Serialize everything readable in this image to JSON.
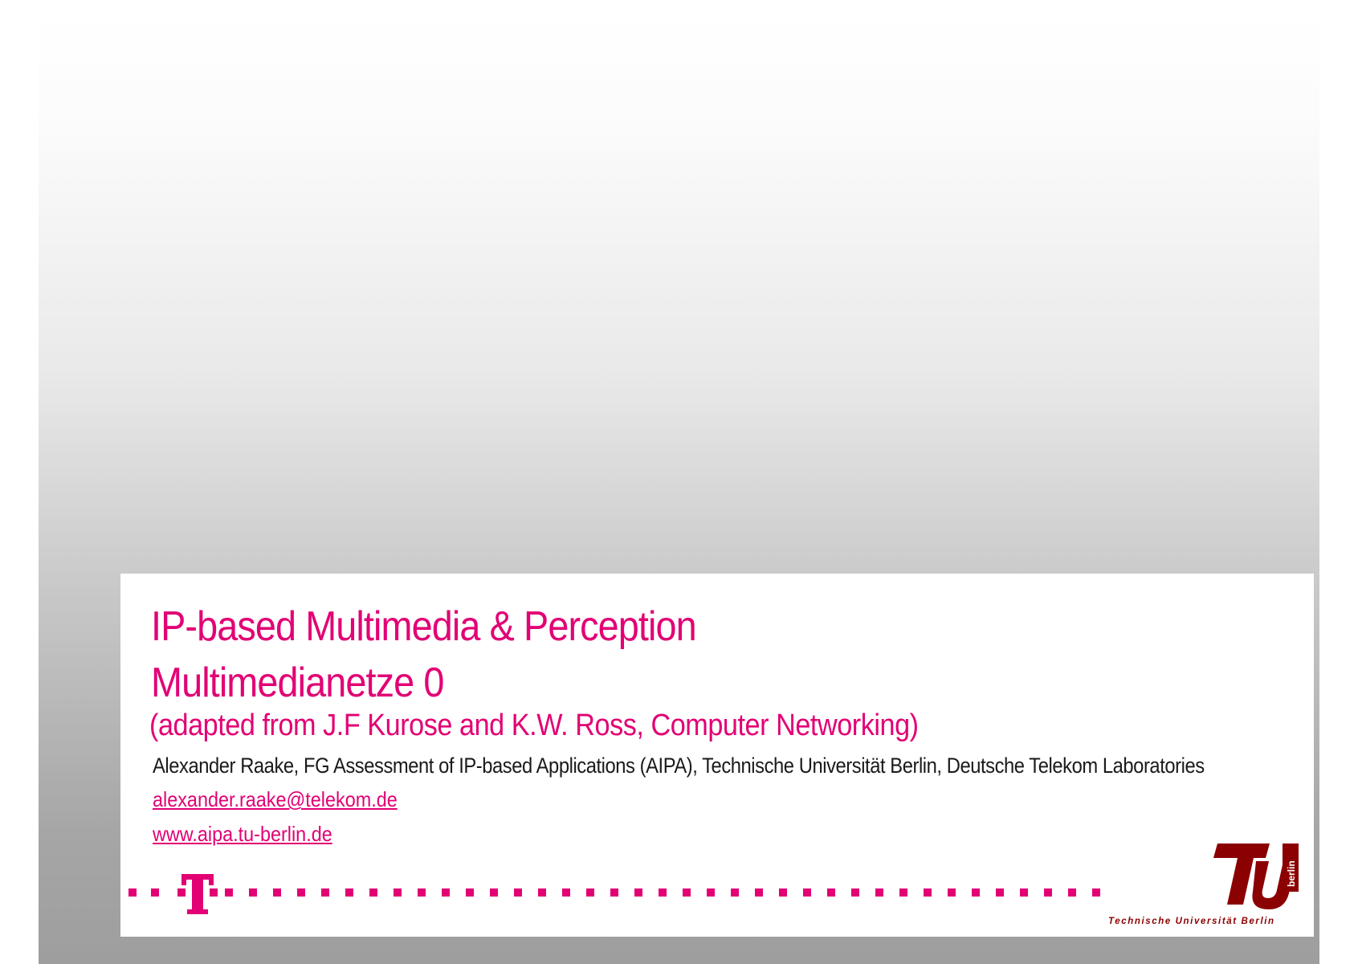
{
  "slide": {
    "title_line1": "IP-based Multimedia & Perception",
    "title_line2": "Multimedianetze 0",
    "subtitle": "(adapted from J.F Kurose and K.W. Ross, Computer Networking)",
    "author": "Alexander Raake, FG Assessment of IP-based Applications (AIPA), Technische Universität Berlin, Deutsche Telekom Laboratories",
    "email": "alexander.raake@telekom.de",
    "website": "www.aipa.tu-berlin.de"
  },
  "logos": {
    "telekom": {
      "icon": "telekom-t-logo",
      "color": "#e20074"
    },
    "tu_berlin": {
      "icon": "tu-berlin-logo",
      "wordmark": "berlin",
      "caption": "Technische Universität Berlin",
      "color": "#8b0000"
    }
  },
  "colors": {
    "accent": "#e20074",
    "text": "#1a1a1a",
    "tu_red": "#8b0000"
  }
}
